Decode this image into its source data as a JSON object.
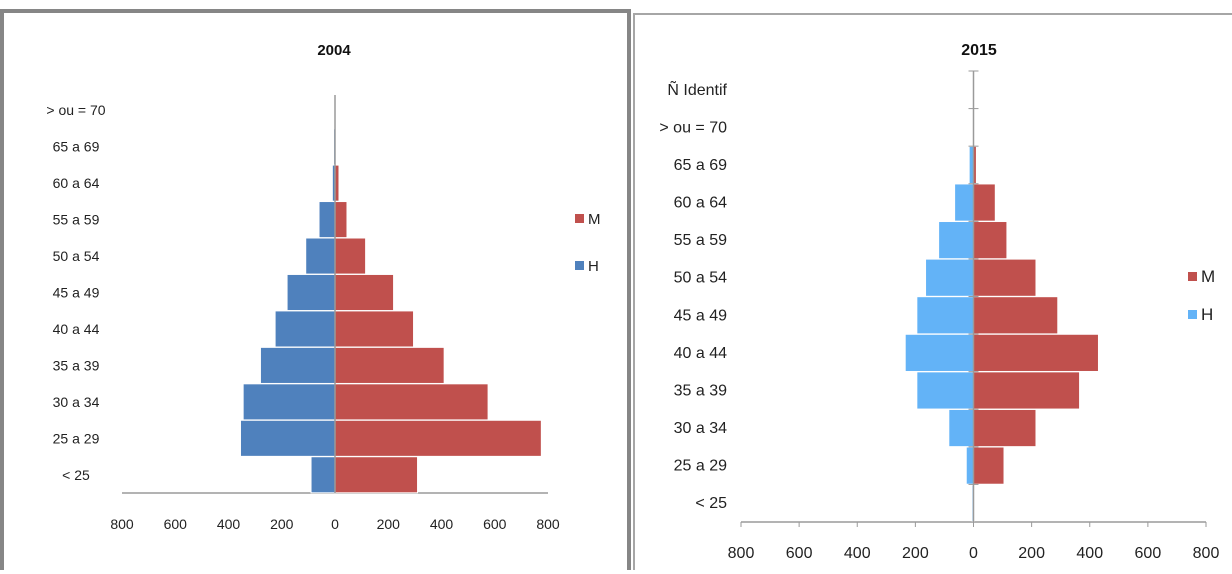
{
  "chart_data": [
    {
      "type": "bar",
      "orientation": "horizontal-population-pyramid",
      "title": "2004",
      "categories": [
        "< 25",
        "25 a 29",
        "30 a 34",
        "35 a 39",
        "40 a 44",
        "45 a 49",
        "50 a 54",
        "55 a 59",
        "60 a 64",
        "65 a 69",
        "> ou = 70"
      ],
      "series": [
        {
          "name": "M",
          "color": "#c0504d",
          "values": [
            310,
            775,
            575,
            410,
            295,
            220,
            115,
            45,
            15,
            0,
            0
          ]
        },
        {
          "name": "H",
          "color": "#4f81bd",
          "values": [
            90,
            355,
            345,
            280,
            225,
            180,
            110,
            60,
            10,
            5,
            0
          ]
        }
      ],
      "xlim": [
        -800,
        800
      ],
      "xtick_labels": [
        "800",
        "600",
        "400",
        "200",
        "0",
        "200",
        "400",
        "600",
        "800"
      ],
      "legend": "right"
    },
    {
      "type": "bar",
      "orientation": "horizontal-population-pyramid",
      "title": "2015",
      "categories": [
        "< 25",
        "25 a 29",
        "30 a 34",
        "35 a 39",
        "40 a 44",
        "45 a 49",
        "50 a 54",
        "55 a 59",
        "60 a 64",
        "65 a 69",
        "> ou = 70",
        "Ñ Identif"
      ],
      "series": [
        {
          "name": "M",
          "color": "#c0504d",
          "values": [
            3,
            105,
            215,
            365,
            430,
            290,
            215,
            115,
            75,
            10,
            0,
            0
          ]
        },
        {
          "name": "H",
          "color": "#63b3f7",
          "values": [
            5,
            25,
            85,
            195,
            235,
            195,
            165,
            120,
            65,
            15,
            0,
            0
          ]
        }
      ],
      "xlim": [
        -800,
        800
      ],
      "xtick_labels": [
        "800",
        "600",
        "400",
        "200",
        "0",
        "200",
        "400",
        "600",
        "800"
      ],
      "legend": "right"
    }
  ]
}
